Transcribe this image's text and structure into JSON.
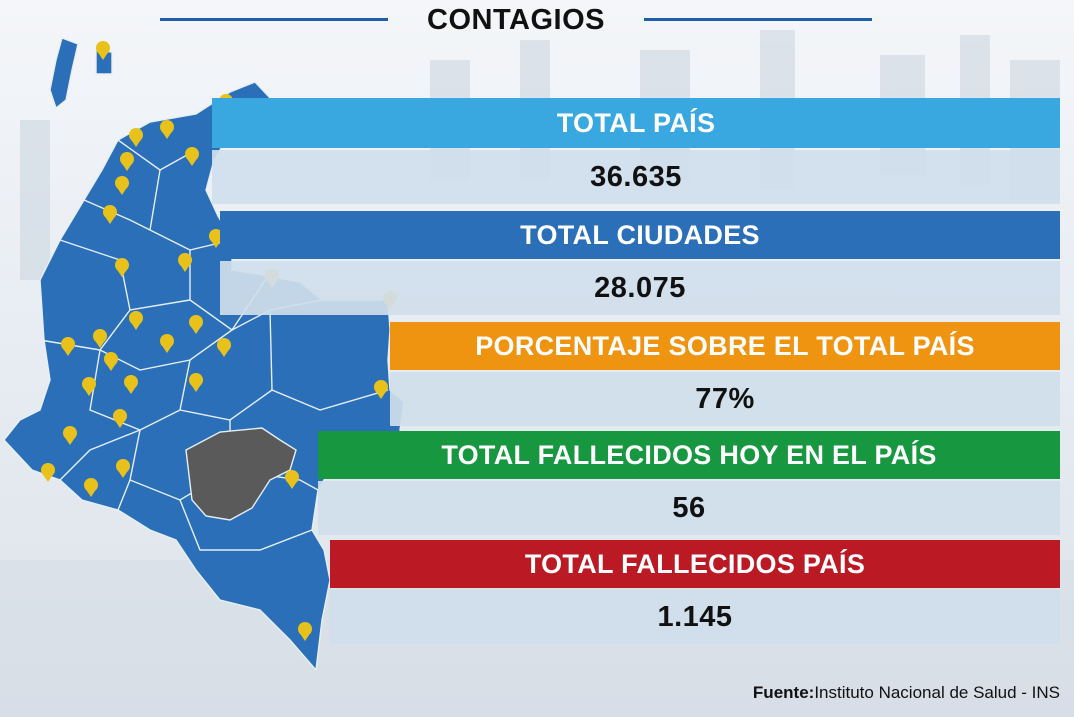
{
  "title": "CONTAGIOS",
  "colors": {
    "map_fill": "#2a6fb8",
    "highlight_region": "#5a5a5a",
    "pin": "#e8c21a",
    "title_line": "#1f5ea8"
  },
  "stats": [
    {
      "label": "TOTAL PAÍS",
      "value": "36.635",
      "color": "#3aa8e0"
    },
    {
      "label": "TOTAL CIUDADES",
      "value": "28.075",
      "color": "#2a6fb8"
    },
    {
      "label": "PORCENTAJE SOBRE EL TOTAL PAÍS",
      "value": "77%",
      "color": "#ef9410"
    },
    {
      "label": "TOTAL FALLECIDOS HOY EN EL PAÍS",
      "value": "56",
      "color": "#17973f"
    },
    {
      "label": "TOTAL FALLECIDOS PAÍS",
      "value": "1.145",
      "color": "#bb1a24"
    }
  ],
  "source": {
    "prefix": "Fuente:",
    "text": "Instituto Nacional de Salud - INS"
  }
}
